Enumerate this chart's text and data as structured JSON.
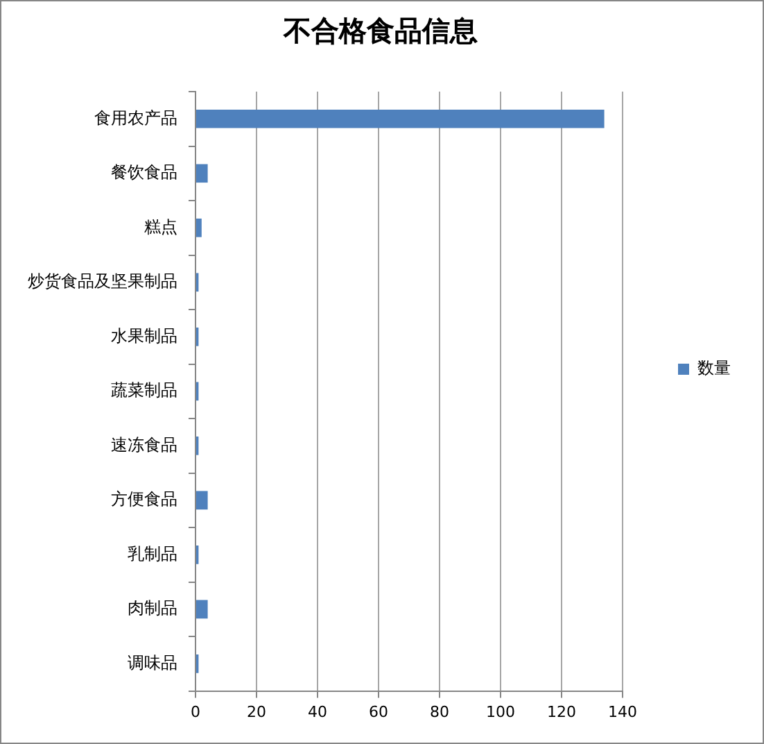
{
  "chart_data": {
    "type": "bar",
    "orientation": "horizontal",
    "title": "不合格食品信息",
    "categories": [
      "食用农产品",
      "餐饮食品",
      "糕点",
      "炒货食品及坚果制品",
      "水果制品",
      "蔬菜制品",
      "速冻食品",
      "方便食品",
      "乳制品",
      "肉制品",
      "调味品"
    ],
    "series": [
      {
        "name": "数量",
        "color": "#4f81bd",
        "values": [
          134,
          4,
          2,
          1,
          1,
          1,
          1,
          4,
          1,
          4,
          1
        ]
      }
    ],
    "xlim": [
      0,
      140
    ],
    "xticks": [
      0,
      20,
      40,
      60,
      80,
      100,
      120,
      140
    ],
    "grid": "x",
    "legend": "right"
  }
}
